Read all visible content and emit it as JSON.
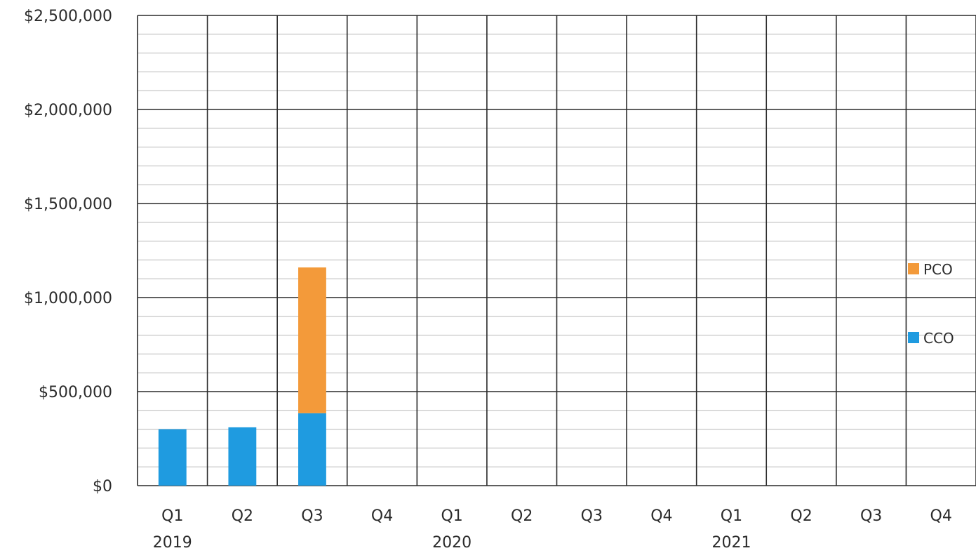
{
  "chart_data": {
    "type": "bar",
    "stacked": true,
    "title": "",
    "xlabel": "",
    "ylabel": "",
    "categories": [
      "Q1",
      "Q2",
      "Q3",
      "Q4",
      "Q1",
      "Q2",
      "Q3",
      "Q4",
      "Q1",
      "Q2",
      "Q3",
      "Q4"
    ],
    "year_groups": [
      {
        "label": "2019",
        "start": 0,
        "end": 3
      },
      {
        "label": "2020",
        "start": 4,
        "end": 7
      },
      {
        "label": "2021",
        "start": 8,
        "end": 11
      }
    ],
    "series": [
      {
        "name": "CCO",
        "color": "#1f9be0",
        "values": [
          300000,
          310000,
          385000,
          null,
          null,
          null,
          null,
          null,
          null,
          null,
          null,
          null
        ]
      },
      {
        "name": "PCO",
        "color": "#f39a3a",
        "values": [
          null,
          null,
          775000,
          null,
          null,
          null,
          null,
          null,
          null,
          null,
          null,
          null
        ]
      }
    ],
    "ylim": [
      0,
      2500000
    ],
    "yticks": [
      0,
      500000,
      1000000,
      1500000,
      2000000,
      2500000
    ],
    "ytick_labels": [
      "$0",
      "$500,000",
      "$1,000,000",
      "$1,500,000",
      "$2,000,000",
      "$2,500,000"
    ],
    "minor_gridlines_per_major": 5,
    "grid": true,
    "legend_position": "right",
    "legend_order": [
      "PCO",
      "CCO"
    ]
  }
}
